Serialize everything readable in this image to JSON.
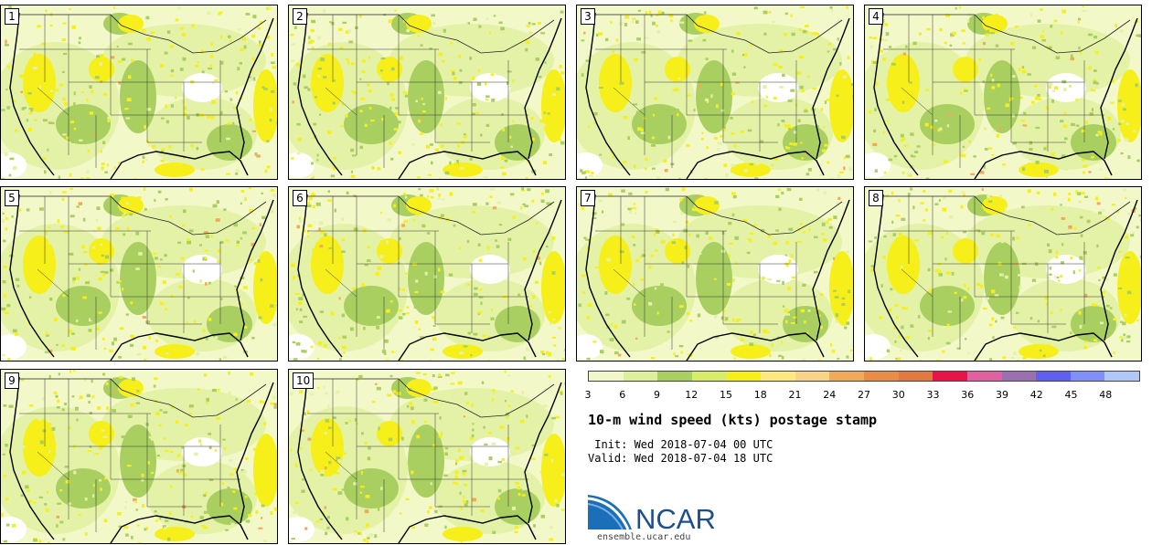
{
  "panels": [
    {
      "label": "1",
      "seed": 11
    },
    {
      "label": "2",
      "seed": 23
    },
    {
      "label": "3",
      "seed": 37
    },
    {
      "label": "4",
      "seed": 41
    },
    {
      "label": "5",
      "seed": 53
    },
    {
      "label": "6",
      "seed": 67
    },
    {
      "label": "7",
      "seed": 71
    },
    {
      "label": "8",
      "seed": 83
    },
    {
      "label": "9",
      "seed": 97
    },
    {
      "label": "10",
      "seed": 101
    }
  ],
  "colorbar": {
    "colors": [
      "#f1f7c8",
      "#dcef9a",
      "#a8cf60",
      "#d8ec6a",
      "#f6ef1a",
      "#fbe880",
      "#f8d488",
      "#f0aa5a",
      "#e88c48",
      "#e07a40",
      "#e81448",
      "#e060a0",
      "#9a70b0",
      "#6060f0",
      "#8090f8",
      "#b0c8f8"
    ],
    "ticks": [
      "3",
      "6",
      "9",
      "12",
      "15",
      "18",
      "21",
      "24",
      "27",
      "30",
      "33",
      "36",
      "39",
      "42",
      "45",
      "48"
    ]
  },
  "legend": {
    "title": "10-m wind speed (kts) postage stamp",
    "init": " Init: Wed 2018-07-04 00 UTC",
    "valid": "Valid: Wed 2018-07-04 18 UTC"
  },
  "branding": {
    "logo_text": "NCAR",
    "url": "ensemble.ucar.edu"
  },
  "map_colors": {
    "background": "#f2f8c8",
    "light": "#e4f2a8",
    "medium": "#a8cf60",
    "yellow": "#f6ef1a",
    "orange": "#f0aa5a",
    "white": "#ffffff"
  }
}
